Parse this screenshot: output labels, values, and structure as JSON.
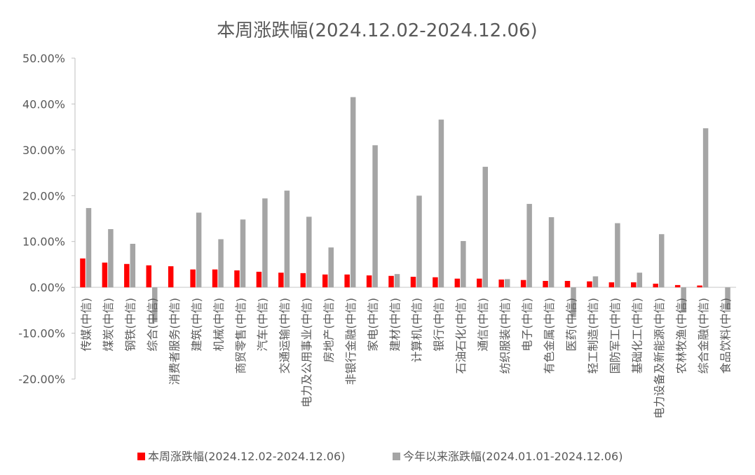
{
  "chart_data": {
    "type": "bar",
    "title": "本周涨跌幅(2024.12.02-2024.12.06)",
    "ylim": [
      -20,
      50
    ],
    "yticks": [
      "-20.00%",
      "-10.00%",
      "0.00%",
      "10.00%",
      "20.00%",
      "30.00%",
      "40.00%",
      "50.00%"
    ],
    "ytick_values": [
      -20,
      -10,
      0,
      10,
      20,
      30,
      40,
      50
    ],
    "grid": false,
    "legend_position": "bottom",
    "categories": [
      "传媒(中信)",
      "煤炭(中信)",
      "钢铁(中信)",
      "综合(中信)",
      "消费者服务(中信)",
      "建筑(中信)",
      "机械(中信)",
      "商贸零售(中信)",
      "汽车(中信)",
      "交通运输(中信)",
      "电力及公用事业(中信)",
      "房地产(中信)",
      "非银行金融(中信)",
      "家电(中信)",
      "建材(中信)",
      "计算机(中信)",
      "银行(中信)",
      "石油石化(中信)",
      "通信(中信)",
      "纺织服装(中信)",
      "电子(中信)",
      "有色金属(中信)",
      "医药(中信)",
      "轻工制造(中信)",
      "国防军工(中信)",
      "基础化工(中信)",
      "电力设备及新能源(中信)",
      "农林牧渔(中信)",
      "综合金融(中信)",
      "食品饮料(中信)"
    ],
    "series": [
      {
        "name": "本周涨跌幅(2024.12.02-2024.12.06)",
        "color": "#ff0000",
        "values": [
          6.3,
          5.4,
          5.1,
          4.8,
          4.6,
          3.9,
          3.9,
          3.7,
          3.4,
          3.2,
          3.1,
          2.8,
          2.8,
          2.6,
          2.5,
          2.3,
          2.2,
          1.9,
          1.9,
          1.7,
          1.6,
          1.4,
          1.4,
          1.3,
          1.1,
          1.1,
          0.8,
          0.5,
          0.4,
          0.0
        ]
      },
      {
        "name": "今年以来涨跌幅(2024.01.01-2024.12.06)",
        "color": "#a5a5a5",
        "values": [
          17.3,
          12.7,
          9.5,
          -7.6,
          0.0,
          16.3,
          10.5,
          14.8,
          19.4,
          21.1,
          15.4,
          8.7,
          41.5,
          31.0,
          2.9,
          20.0,
          36.6,
          10.1,
          26.3,
          1.8,
          18.2,
          15.3,
          -6.5,
          2.4,
          14.0,
          3.2,
          11.6,
          -5.5,
          34.7,
          -4.9
        ]
      }
    ]
  }
}
